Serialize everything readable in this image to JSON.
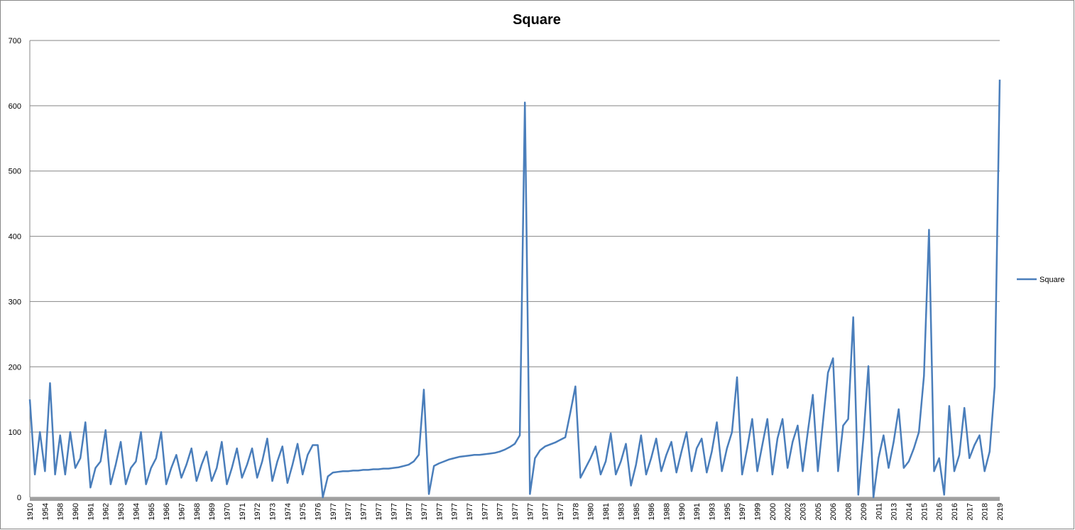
{
  "chart_data": {
    "type": "line",
    "title": "Square",
    "categories": [
      "1910",
      null,
      null,
      "1954",
      null,
      null,
      "1958",
      null,
      null,
      "1960",
      null,
      null,
      "1961",
      null,
      null,
      "1962",
      null,
      null,
      "1963",
      null,
      null,
      "1964",
      null,
      null,
      "1965",
      null,
      null,
      "1966",
      null,
      null,
      "1967",
      null,
      null,
      "1968",
      null,
      null,
      "1969",
      null,
      null,
      "1970",
      null,
      null,
      "1971",
      null,
      null,
      "1972",
      null,
      null,
      "1973",
      null,
      null,
      "1974",
      null,
      null,
      "1975",
      null,
      null,
      "1976",
      null,
      null,
      "1977",
      null,
      null,
      "1977",
      null,
      null,
      "1977",
      null,
      null,
      "1977",
      null,
      null,
      "1977",
      null,
      null,
      "1977",
      null,
      null,
      "1977",
      null,
      null,
      "1977",
      null,
      null,
      "1977",
      null,
      null,
      "1977",
      null,
      null,
      "1977",
      null,
      null,
      "1977",
      null,
      null,
      "1977",
      null,
      null,
      "1977",
      null,
      null,
      "1977",
      null,
      null,
      "1977",
      null,
      null,
      "1978",
      null,
      null,
      "1980",
      null,
      null,
      "1981",
      null,
      null,
      "1983",
      null,
      null,
      "1985",
      null,
      null,
      "1986",
      null,
      null,
      "1988",
      null,
      null,
      "1990",
      null,
      null,
      "1991",
      null,
      null,
      "1993",
      null,
      null,
      "1995",
      null,
      null,
      "1997",
      null,
      null,
      "1999",
      null,
      null,
      "2000",
      null,
      null,
      "2002",
      null,
      null,
      "2003",
      null,
      null,
      "2005",
      null,
      null,
      "2006",
      null,
      null,
      "2008",
      null,
      null,
      "2009",
      null,
      null,
      "2011",
      null,
      null,
      "2013",
      null,
      null,
      "2014",
      null,
      null,
      "2015",
      null,
      null,
      "2016",
      null,
      null,
      "2016",
      null,
      null,
      "2017",
      null,
      null,
      "2018",
      null,
      null,
      "2019"
    ],
    "series": [
      {
        "name": "Square",
        "color": "#4a7ebb",
        "values": [
          150,
          35,
          100,
          40,
          175,
          35,
          95,
          35,
          100,
          45,
          60,
          115,
          15,
          45,
          55,
          103,
          20,
          50,
          85,
          20,
          45,
          55,
          100,
          20,
          45,
          60,
          100,
          20,
          45,
          65,
          30,
          50,
          75,
          25,
          50,
          70,
          25,
          45,
          85,
          20,
          45,
          75,
          30,
          50,
          75,
          30,
          55,
          90,
          25,
          55,
          78,
          22,
          50,
          82,
          35,
          65,
          80,
          80,
          0,
          32,
          38,
          39,
          40,
          40,
          41,
          41,
          42,
          42,
          43,
          43,
          44,
          44,
          45,
          46,
          48,
          50,
          55,
          65,
          165,
          5,
          48,
          52,
          55,
          58,
          60,
          62,
          63,
          64,
          65,
          65,
          66,
          67,
          68,
          70,
          73,
          77,
          82,
          95,
          605,
          5,
          60,
          72,
          78,
          81,
          84,
          88,
          92,
          130,
          170,
          30,
          45,
          60,
          78,
          35,
          55,
          98,
          35,
          55,
          82,
          18,
          50,
          95,
          35,
          60,
          90,
          40,
          65,
          85,
          38,
          70,
          100,
          40,
          75,
          90,
          38,
          70,
          115,
          40,
          75,
          100,
          184,
          35,
          75,
          120,
          40,
          80,
          120,
          35,
          90,
          120,
          45,
          85,
          110,
          40,
          100,
          157,
          40,
          115,
          191,
          213,
          40,
          110,
          120,
          276,
          4,
          90,
          201,
          0,
          60,
          95,
          45,
          85,
          135,
          45,
          55,
          75,
          100,
          186,
          410,
          40,
          60,
          4,
          140,
          40,
          65,
          137,
          60,
          80,
          95,
          40,
          70,
          170,
          640
        ]
      }
    ],
    "ylim": [
      0,
      700
    ],
    "yticks": [
      0,
      100,
      200,
      300,
      400,
      500,
      600,
      700
    ],
    "grid": true,
    "legend": "right"
  }
}
